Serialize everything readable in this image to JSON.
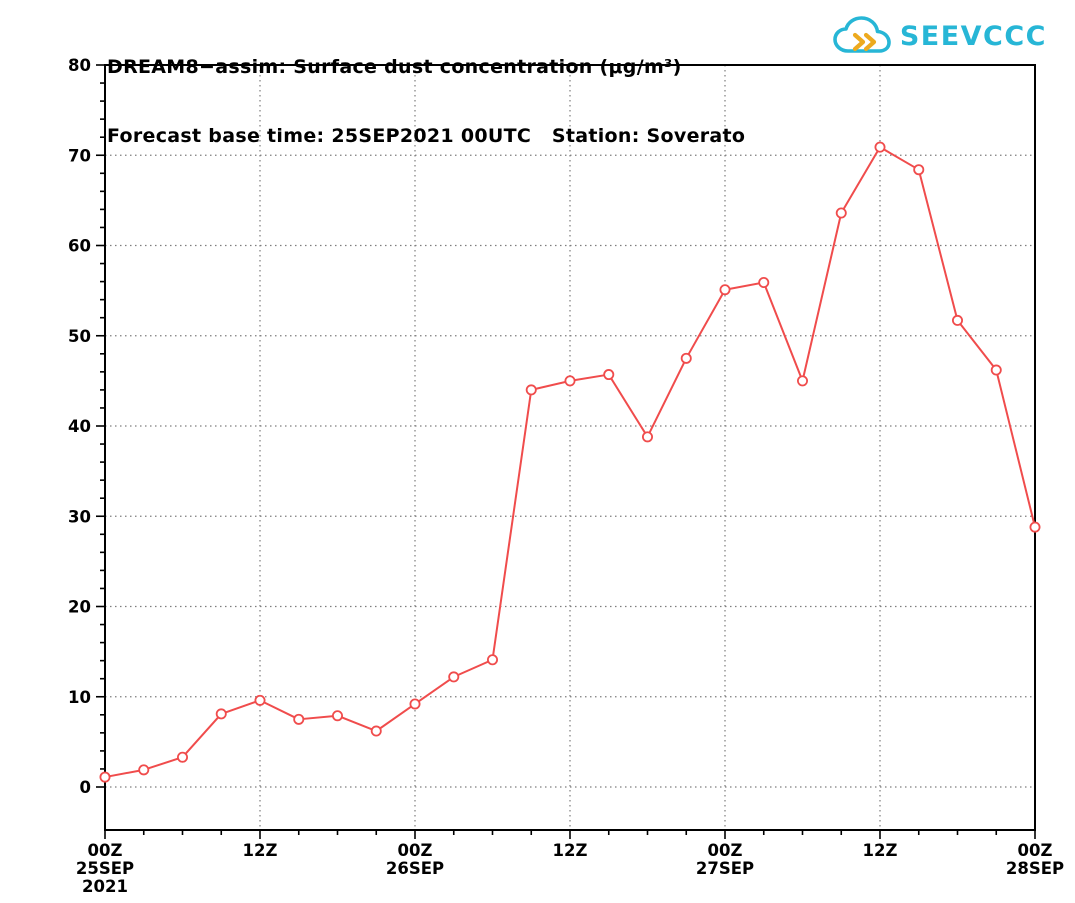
{
  "header": {
    "logo_text": "SEEVCCC"
  },
  "chart_data": {
    "type": "line",
    "title": "DREAM8−assim: Surface dust concentration (μg/m³)",
    "subtitle": "Forecast base time: 25SEP2021 00UTC   Station: Soverato",
    "station": "Soverato",
    "x_unit": "hours since 25SEP2021 00UTC",
    "x_range": [
      0,
      72
    ],
    "x_step_hours": 3,
    "x": [
      0,
      3,
      6,
      9,
      12,
      15,
      18,
      21,
      24,
      27,
      30,
      33,
      36,
      39,
      42,
      45,
      48,
      51,
      54,
      57,
      60,
      63,
      66,
      69,
      72
    ],
    "values": [
      1.1,
      1.9,
      3.3,
      8.1,
      9.6,
      7.5,
      7.9,
      6.2,
      9.2,
      12.2,
      14.1,
      44.0,
      45.0,
      45.7,
      38.8,
      47.5,
      55.1,
      55.9,
      45.0,
      63.6,
      70.9,
      68.4,
      51.7,
      46.2,
      28.8
    ],
    "ylim": [
      0,
      80
    ],
    "y_ticks": [
      0,
      10,
      20,
      30,
      40,
      50,
      60,
      70,
      80
    ],
    "y_minor_step": 2,
    "x_ticks": [
      {
        "hour": 0,
        "label": "00Z",
        "date": "25SEP",
        "year": "2021"
      },
      {
        "hour": 12,
        "label": "12Z"
      },
      {
        "hour": 24,
        "label": "00Z",
        "date": "26SEP"
      },
      {
        "hour": 36,
        "label": "12Z"
      },
      {
        "hour": 48,
        "label": "00Z",
        "date": "27SEP"
      },
      {
        "hour": 60,
        "label": "12Z"
      },
      {
        "hour": 72,
        "label": "00Z",
        "date": "28SEP"
      }
    ],
    "line_color": "#f04c4c",
    "marker": "open-circle",
    "grid_style": "dotted",
    "grid_color": "#7d7d7d",
    "frame_color": "#000000",
    "legend": "none"
  }
}
